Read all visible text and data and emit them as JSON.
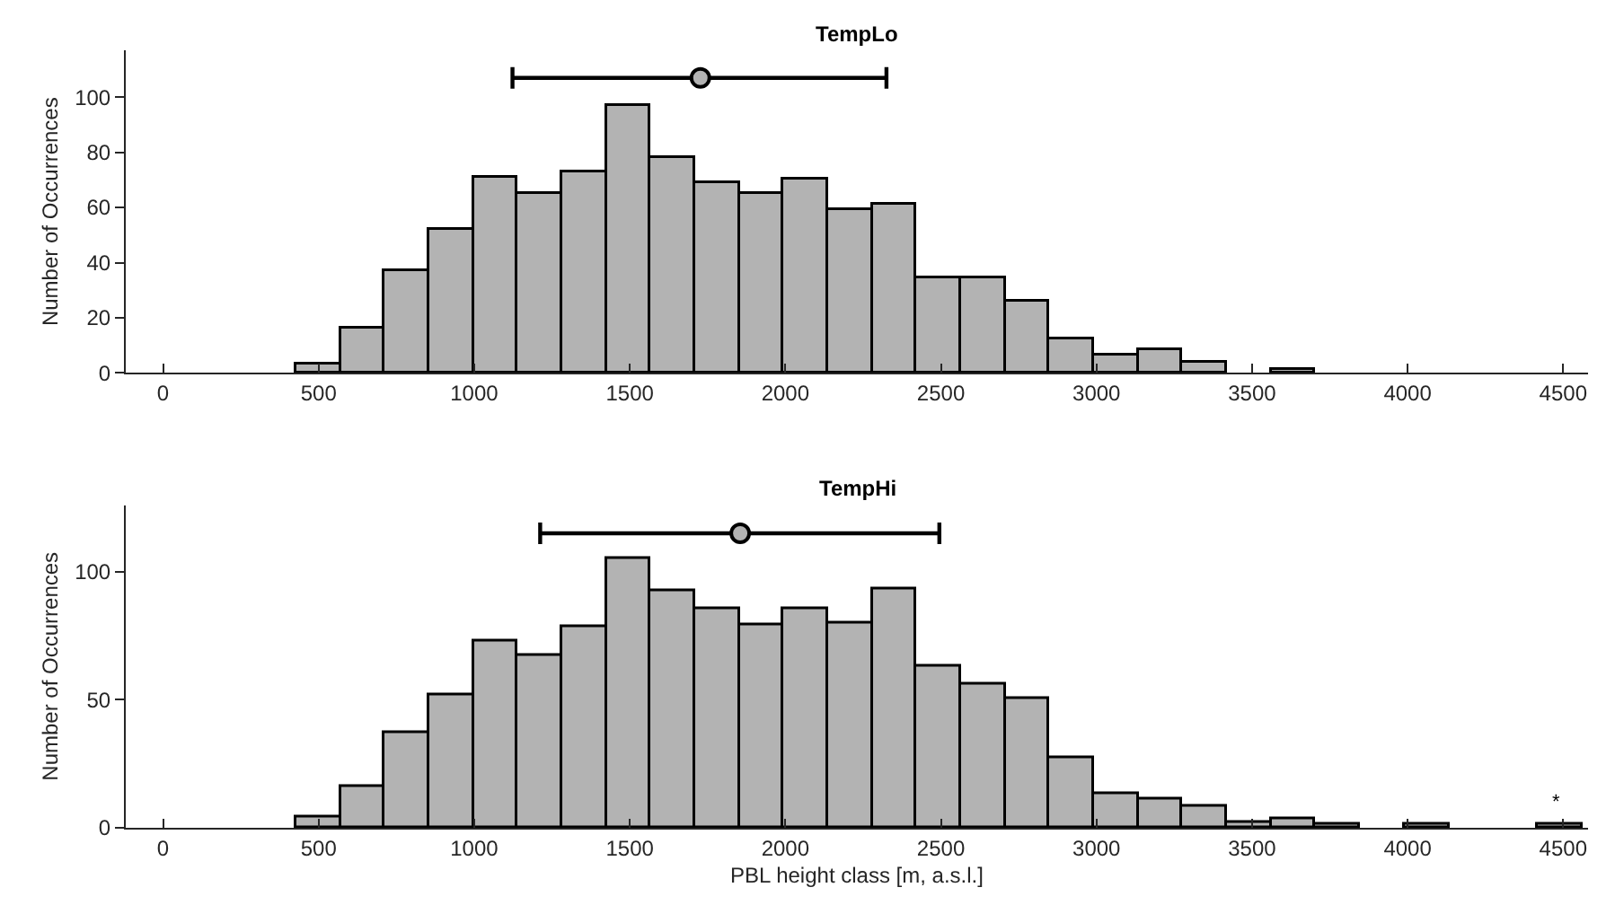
{
  "chart_data": [
    {
      "type": "histogram",
      "title": "TempLo",
      "ylabel": "Number of Occurrences",
      "xlim": [
        -120,
        4580
      ],
      "xticks": [
        0,
        500,
        1000,
        1500,
        2000,
        2500,
        3000,
        3500,
        4000,
        4500
      ],
      "ylim": [
        0,
        117
      ],
      "yticks": [
        0,
        20,
        40,
        60,
        80,
        100
      ],
      "series": [
        {
          "color": "#b3b3b3",
          "bins": [
            0,
            142.5,
            285,
            427.5,
            570,
            712.5,
            855,
            997.5,
            1140,
            1282.5,
            1425,
            1567.5,
            1710,
            1852.5,
            1995,
            2137.5,
            2280,
            2422.5,
            2565,
            2707.5,
            2850,
            2992.5,
            3135,
            3277.5,
            3420,
            3562.5,
            3705,
            3847.5,
            3990,
            4132.5,
            4275,
            4417.5,
            4560
          ],
          "values": [
            0,
            0,
            0,
            3,
            16,
            37,
            52,
            71,
            65,
            73,
            97,
            78,
            69,
            65,
            70,
            59,
            61,
            34,
            34,
            26,
            12,
            6,
            8,
            4,
            0,
            1,
            0,
            0,
            0,
            0,
            0,
            0
          ]
        },
        {
          "type": "scatter",
          "color": "#b3b3b3",
          "marker": "circle",
          "x": [
            1727
          ],
          "values": [
            107
          ],
          "xerrors": [
            [
              1123,
              2325
            ]
          ]
        }
      ]
    },
    {
      "type": "histogram",
      "title": "TempHi",
      "xlabel": "PBL height class [m, a.s.l.]",
      "ylabel": "Number of Occurrences",
      "xlim": [
        -120,
        4580
      ],
      "xticks": [
        0,
        500,
        1000,
        1500,
        2000,
        2500,
        3000,
        3500,
        4000,
        4500
      ],
      "ylim": [
        0,
        126
      ],
      "yticks": [
        0,
        50,
        100
      ],
      "annotations": [
        {
          "text": "*",
          "x": 4480,
          "y": 4
        }
      ],
      "series": [
        {
          "color": "#b3b3b3",
          "bins": [
            0,
            142.5,
            285,
            427.5,
            570,
            712.5,
            855,
            997.5,
            1140,
            1282.5,
            1425,
            1567.5,
            1710,
            1852.5,
            1995,
            2137.5,
            2280,
            2422.5,
            2565,
            2707.5,
            2850,
            2992.5,
            3135,
            3277.5,
            3420,
            3562.5,
            3705,
            3847.5,
            3990,
            4132.5,
            4275,
            4417.5,
            4560
          ],
          "values": [
            0,
            0,
            0,
            4,
            16,
            37,
            52,
            73,
            67,
            78,
            105,
            92,
            85,
            79,
            85,
            80,
            93,
            63,
            56,
            50,
            27,
            13,
            11,
            8,
            2,
            3,
            1,
            0,
            1,
            0,
            0,
            1
          ]
        },
        {
          "type": "scatter",
          "color": "#b3b3b3",
          "marker": "circle",
          "x": [
            1855
          ],
          "values": [
            115
          ],
          "xerrors": [
            [
              1212,
              2495
            ]
          ]
        }
      ]
    }
  ]
}
